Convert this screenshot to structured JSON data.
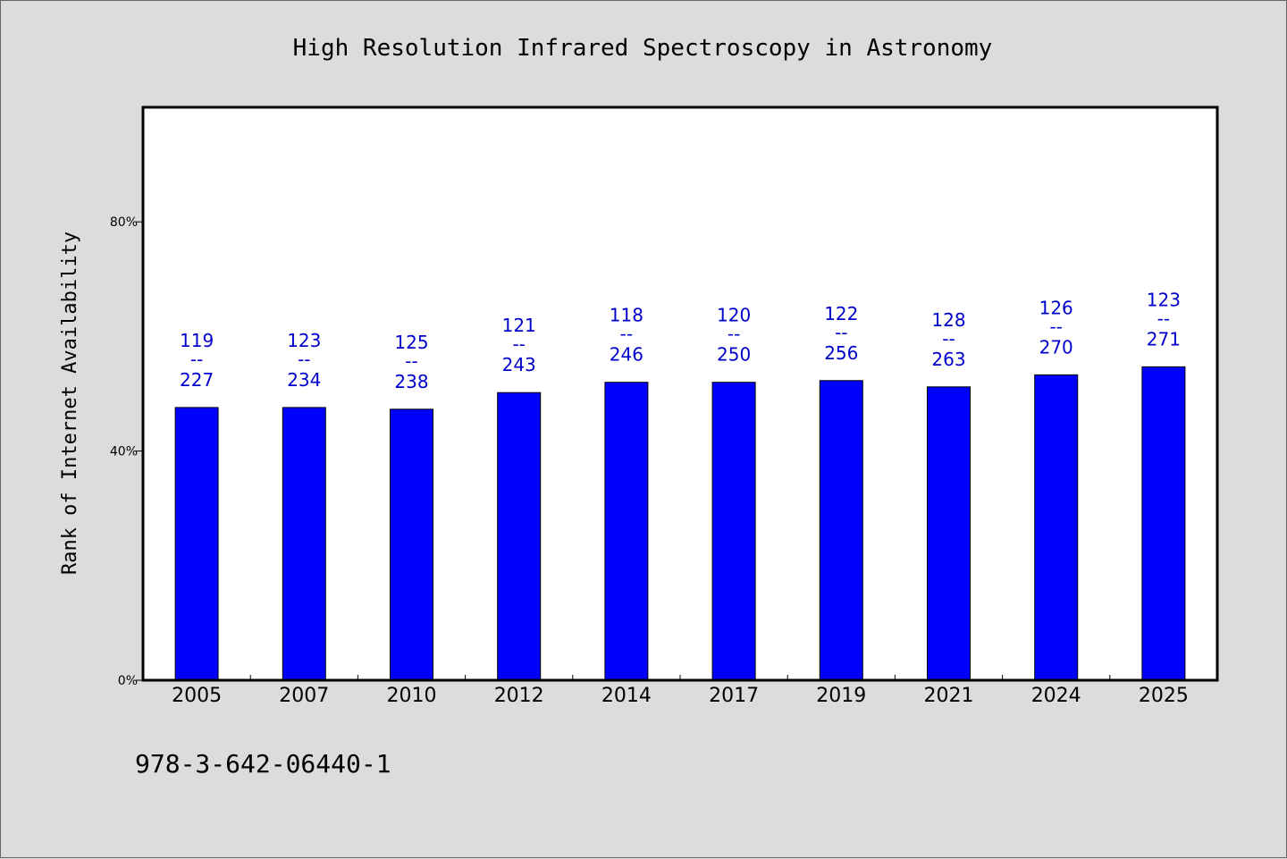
{
  "chart_data": {
    "type": "bar",
    "title": "High Resolution Infrared Spectroscopy in Astronomy",
    "ylabel": "Rank of Internet Availability",
    "xlabel": "",
    "ylim": [
      0,
      100
    ],
    "yticks": [
      {
        "value": 0,
        "label": "0%"
      },
      {
        "value": 40,
        "label": "40%"
      },
      {
        "value": 80,
        "label": "80%"
      }
    ],
    "categories": [
      "2005",
      "2007",
      "2010",
      "2012",
      "2014",
      "2017",
      "2019",
      "2021",
      "2024",
      "2025"
    ],
    "values": [
      47.6,
      47.6,
      47.3,
      50.2,
      52.0,
      52.0,
      52.3,
      51.2,
      53.3,
      54.7
    ],
    "data_labels": [
      {
        "top": "119",
        "sep": "--",
        "bottom": "227"
      },
      {
        "top": "123",
        "sep": "--",
        "bottom": "234"
      },
      {
        "top": "125",
        "sep": "--",
        "bottom": "238"
      },
      {
        "top": "121",
        "sep": "--",
        "bottom": "243"
      },
      {
        "top": "118",
        "sep": "--",
        "bottom": "246"
      },
      {
        "top": "120",
        "sep": "--",
        "bottom": "250"
      },
      {
        "top": "122",
        "sep": "--",
        "bottom": "256"
      },
      {
        "top": "128",
        "sep": "--",
        "bottom": "263"
      },
      {
        "top": "126",
        "sep": "--",
        "bottom": "270"
      },
      {
        "top": "123",
        "sep": "--",
        "bottom": "271"
      }
    ],
    "bar_color": "#0000ff",
    "label_color": "#0000cc",
    "grid": false,
    "legend": "none"
  },
  "footer": {
    "isbn": "978-3-642-06440-1"
  }
}
